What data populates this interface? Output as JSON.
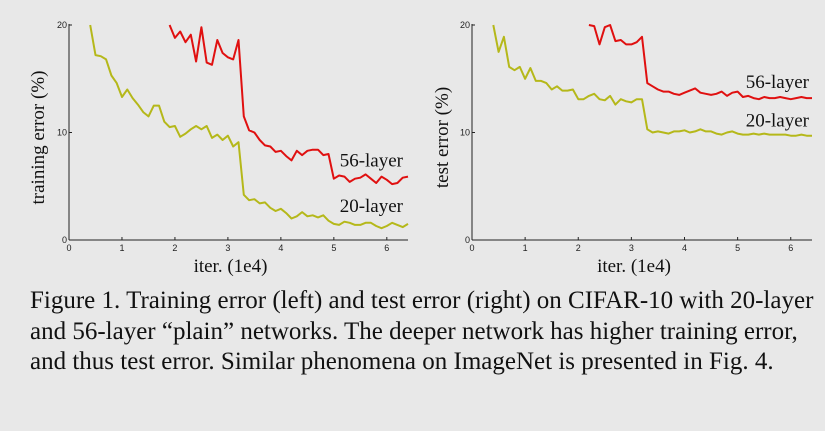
{
  "chart_data": [
    {
      "type": "line",
      "ylabel": "training error (%)",
      "xlabel": "iter. (1e4)",
      "xlim": [
        0,
        6.4
      ],
      "ylim": [
        0,
        20
      ],
      "xticks": [
        "0",
        "1",
        "2",
        "3",
        "4",
        "5",
        "6"
      ],
      "yticks": [
        "0",
        "10",
        "20"
      ],
      "grid": false,
      "legend": "inline labels at right",
      "series": [
        {
          "name": "56-layer",
          "color": "#e01010",
          "x": [
            1.9,
            2.0,
            2.1,
            2.2,
            2.3,
            2.4,
            2.5,
            2.6,
            2.7,
            2.8,
            2.9,
            3.0,
            3.1,
            3.2,
            3.3,
            3.4,
            3.5,
            3.6,
            3.7,
            3.8,
            3.9,
            4.0,
            4.1,
            4.2,
            4.3,
            4.4,
            4.5,
            4.6,
            4.7,
            4.8,
            4.9,
            5.0,
            5.1,
            5.2,
            5.3,
            5.4,
            5.5,
            5.6,
            5.7,
            5.8,
            5.9,
            6.0,
            6.1,
            6.2,
            6.3,
            6.4
          ],
          "y": [
            20,
            18.8,
            19.4,
            18.4,
            19.1,
            16.6,
            19.8,
            16.5,
            16.3,
            18.6,
            17.4,
            17.0,
            16.8,
            18.6,
            11.5,
            10.2,
            10.0,
            9.3,
            8.8,
            8.7,
            8.2,
            8.3,
            7.8,
            7.4,
            8.3,
            7.9,
            8.3,
            8.4,
            8.4,
            7.9,
            8.0,
            5.7,
            6.0,
            5.9,
            5.4,
            5.7,
            5.8,
            6.1,
            5.7,
            5.3,
            5.9,
            5.6,
            5.2,
            5.3,
            5.8,
            5.9
          ]
        },
        {
          "name": "20-layer",
          "color": "#b5b81a",
          "x": [
            0.4,
            0.5,
            0.6,
            0.7,
            0.8,
            0.9,
            1.0,
            1.1,
            1.2,
            1.3,
            1.4,
            1.5,
            1.6,
            1.7,
            1.8,
            1.9,
            2.0,
            2.1,
            2.2,
            2.3,
            2.4,
            2.5,
            2.6,
            2.7,
            2.8,
            2.9,
            3.0,
            3.1,
            3.2,
            3.3,
            3.4,
            3.5,
            3.6,
            3.7,
            3.8,
            3.9,
            4.0,
            4.1,
            4.2,
            4.3,
            4.4,
            4.5,
            4.6,
            4.7,
            4.8,
            4.9,
            5.0,
            5.1,
            5.2,
            5.3,
            5.4,
            5.5,
            5.6,
            5.7,
            5.8,
            5.9,
            6.0,
            6.1,
            6.2,
            6.3,
            6.4
          ],
          "y": [
            20,
            17.2,
            17.1,
            16.8,
            15.3,
            14.6,
            13.3,
            14.0,
            13.2,
            12.6,
            11.9,
            11.5,
            12.5,
            12.5,
            11.0,
            10.5,
            10.6,
            9.6,
            9.9,
            10.3,
            10.6,
            10.3,
            10.6,
            9.5,
            9.8,
            9.3,
            9.7,
            8.7,
            9.1,
            4.2,
            3.7,
            3.8,
            3.4,
            3.5,
            3.0,
            2.7,
            2.9,
            2.5,
            2.0,
            2.2,
            2.6,
            2.2,
            2.3,
            2.1,
            2.3,
            1.8,
            1.5,
            1.4,
            1.7,
            1.6,
            1.4,
            1.4,
            1.6,
            1.6,
            1.3,
            1.1,
            1.3,
            1.6,
            1.4,
            1.2,
            1.5
          ]
        }
      ]
    },
    {
      "type": "line",
      "ylabel": "test error (%)",
      "xlabel": "iter. (1e4)",
      "xlim": [
        0,
        6.4
      ],
      "ylim": [
        0,
        20
      ],
      "xticks": [
        "0",
        "1",
        "2",
        "3",
        "4",
        "5",
        "6"
      ],
      "yticks": [
        "0",
        "10",
        "20"
      ],
      "grid": false,
      "legend": "inline labels at right",
      "series": [
        {
          "name": "56-layer",
          "color": "#e01010",
          "x": [
            2.2,
            2.3,
            2.4,
            2.5,
            2.6,
            2.7,
            2.8,
            2.9,
            3.0,
            3.1,
            3.2,
            3.3,
            3.4,
            3.5,
            3.6,
            3.7,
            3.8,
            3.9,
            4.0,
            4.1,
            4.2,
            4.3,
            4.4,
            4.5,
            4.6,
            4.7,
            4.8,
            4.9,
            5.0,
            5.1,
            5.2,
            5.3,
            5.4,
            5.5,
            5.6,
            5.7,
            5.8,
            5.9,
            6.0,
            6.1,
            6.2,
            6.3,
            6.4
          ],
          "y": [
            20,
            19.9,
            18.2,
            19.8,
            20,
            18.5,
            18.6,
            18.2,
            18.2,
            18.4,
            18.9,
            14.6,
            14.3,
            14.0,
            13.8,
            13.8,
            13.6,
            13.5,
            13.7,
            13.9,
            14.1,
            13.7,
            13.6,
            13.5,
            13.6,
            13.8,
            13.4,
            13.7,
            13.8,
            13.3,
            13.4,
            13.2,
            13.1,
            13.3,
            13.2,
            13.2,
            13.3,
            13.2,
            13.1,
            13.2,
            13.3,
            13.2,
            13.2
          ]
        },
        {
          "name": "20-layer",
          "color": "#b5b81a",
          "x": [
            0.4,
            0.5,
            0.6,
            0.7,
            0.8,
            0.9,
            1.0,
            1.1,
            1.2,
            1.3,
            1.4,
            1.5,
            1.6,
            1.7,
            1.8,
            1.9,
            2.0,
            2.1,
            2.2,
            2.3,
            2.4,
            2.5,
            2.6,
            2.7,
            2.8,
            2.9,
            3.0,
            3.1,
            3.2,
            3.3,
            3.4,
            3.5,
            3.6,
            3.7,
            3.8,
            3.9,
            4.0,
            4.1,
            4.2,
            4.3,
            4.4,
            4.5,
            4.6,
            4.7,
            4.8,
            4.9,
            5.0,
            5.1,
            5.2,
            5.3,
            5.4,
            5.5,
            5.6,
            5.7,
            5.8,
            5.9,
            6.0,
            6.1,
            6.2,
            6.3,
            6.4
          ],
          "y": [
            20,
            17.5,
            18.9,
            16.1,
            15.8,
            16.1,
            15.0,
            16.0,
            14.8,
            14.8,
            14.6,
            14.0,
            14.3,
            13.9,
            13.9,
            14.0,
            13.1,
            13.1,
            13.4,
            13.6,
            13.1,
            13.0,
            13.4,
            12.6,
            13.1,
            12.9,
            12.8,
            13.1,
            13.1,
            10.3,
            10.0,
            10.1,
            10.0,
            9.9,
            10.1,
            10.1,
            10.2,
            10.0,
            10.1,
            10.3,
            10.1,
            10.1,
            9.9,
            9.8,
            10.0,
            10.1,
            9.9,
            9.8,
            9.8,
            9.9,
            9.8,
            9.9,
            9.8,
            9.8,
            9.8,
            9.8,
            9.7,
            9.7,
            9.8,
            9.7,
            9.7
          ]
        }
      ]
    }
  ],
  "caption": "Figure 1. Training error (left) and test error (right) on CIFAR-10 with 20-layer and 56-layer “plain” networks. The deeper network has higher training error, and thus test error. Similar phenomena on ImageNet is presented in Fig. 4."
}
